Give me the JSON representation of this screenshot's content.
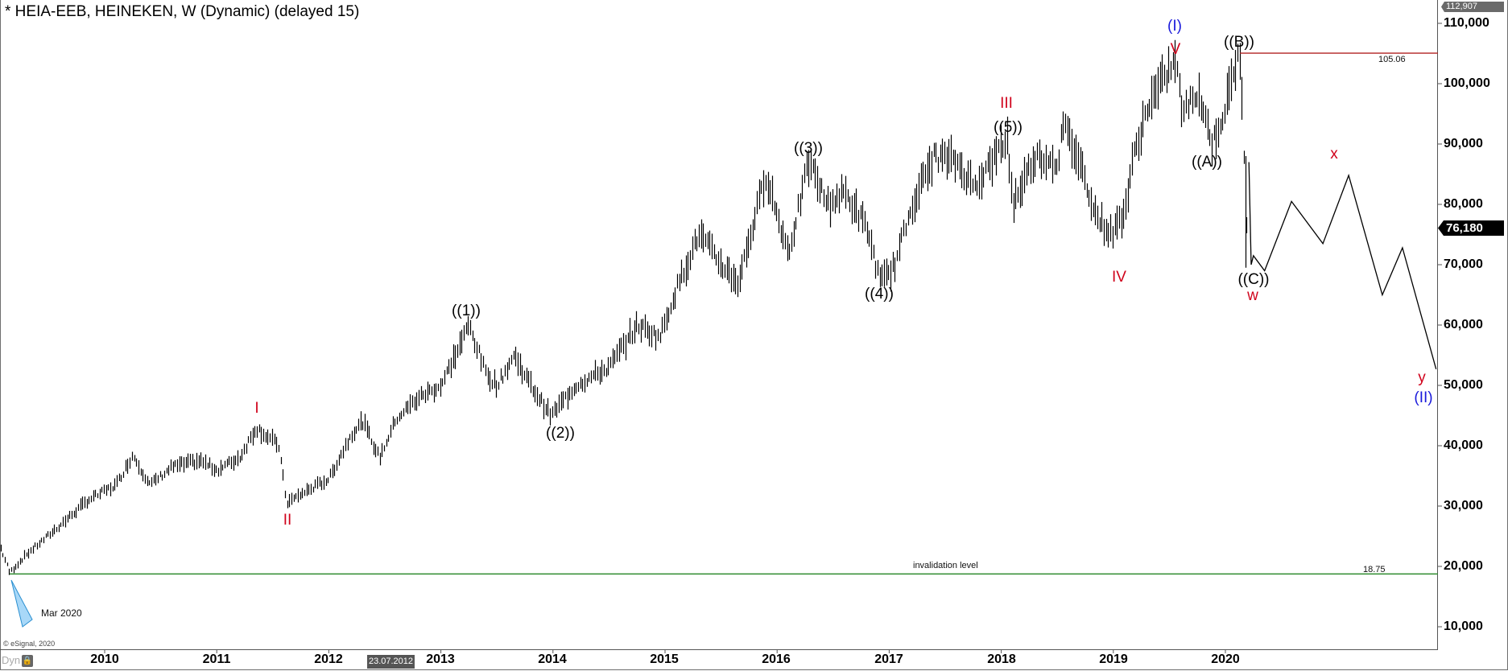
{
  "chart_data": {
    "type": "bar",
    "subtype": "ohlc-weekly-with-elliott-wave-annotations",
    "title": "* HEIA-EEB, HEINEKEN, W (Dynamic) (delayed 15)",
    "xlabel": "",
    "ylabel": "",
    "ylim": [
      6000,
      113500
    ],
    "xlim_years": [
      2009.07,
      2021.83
    ],
    "grid": false,
    "y_ticks": [
      10000,
      20000,
      30000,
      40000,
      50000,
      60000,
      70000,
      80000,
      90000,
      100000,
      110000
    ],
    "y_tick_labels": [
      "10,000",
      "20,000",
      "30,000",
      "40,000",
      "50,000",
      "60,000",
      "70,000",
      "80,000",
      "90,000",
      "100,000",
      "110,000"
    ],
    "x_ticks": [
      2010,
      2011,
      2012,
      2013,
      2014,
      2015,
      2016,
      2017,
      2018,
      2019,
      2020
    ],
    "x_tick_labels": [
      "2010",
      "2011",
      "2012",
      "2013",
      "2014",
      "2015",
      "2016",
      "2017",
      "2018",
      "2019",
      "2020"
    ],
    "price_path": {
      "description": "Approximate weekly price trajectory (year, price) read off the chart",
      "points": [
        [
          2009.07,
          23000
        ],
        [
          2009.15,
          19000
        ],
        [
          2009.3,
          22000
        ],
        [
          2009.55,
          26000
        ],
        [
          2009.85,
          31000
        ],
        [
          2010.1,
          33500
        ],
        [
          2010.25,
          38500
        ],
        [
          2010.4,
          33500
        ],
        [
          2010.6,
          36500
        ],
        [
          2010.85,
          37500
        ],
        [
          2011.0,
          36000
        ],
        [
          2011.2,
          38000
        ],
        [
          2011.35,
          43000
        ],
        [
          2011.55,
          40000
        ],
        [
          2011.62,
          30500
        ],
        [
          2011.8,
          32500
        ],
        [
          2012.0,
          34500
        ],
        [
          2012.2,
          42000
        ],
        [
          2012.3,
          44000
        ],
        [
          2012.45,
          38000
        ],
        [
          2012.6,
          44500
        ],
        [
          2012.8,
          48000
        ],
        [
          2013.0,
          50000
        ],
        [
          2013.25,
          60000
        ],
        [
          2013.4,
          52000
        ],
        [
          2013.5,
          50000
        ],
        [
          2013.65,
          55000
        ],
        [
          2013.8,
          50000
        ],
        [
          2013.98,
          45000
        ],
        [
          2014.2,
          50000
        ],
        [
          2014.5,
          53000
        ],
        [
          2014.75,
          60000
        ],
        [
          2014.95,
          58000
        ],
        [
          2015.1,
          66000
        ],
        [
          2015.3,
          75000
        ],
        [
          2015.5,
          70000
        ],
        [
          2015.65,
          67000
        ],
        [
          2015.9,
          85000
        ],
        [
          2016.0,
          78000
        ],
        [
          2016.1,
          72000
        ],
        [
          2016.28,
          87000
        ],
        [
          2016.45,
          80000
        ],
        [
          2016.6,
          82000
        ],
        [
          2016.8,
          76000
        ],
        [
          2016.92,
          67000
        ],
        [
          2017.05,
          70000
        ],
        [
          2017.2,
          80000
        ],
        [
          2017.4,
          88000
        ],
        [
          2017.6,
          87000
        ],
        [
          2017.75,
          83000
        ],
        [
          2017.95,
          88000
        ],
        [
          2018.05,
          91000
        ],
        [
          2018.1,
          80000
        ],
        [
          2018.3,
          88000
        ],
        [
          2018.5,
          87000
        ],
        [
          2018.55,
          93000
        ],
        [
          2018.7,
          87000
        ],
        [
          2018.85,
          78000
        ],
        [
          2018.98,
          75000
        ],
        [
          2019.1,
          79000
        ],
        [
          2019.18,
          88000
        ],
        [
          2019.3,
          96000
        ],
        [
          2019.55,
          104000
        ],
        [
          2019.62,
          95000
        ],
        [
          2019.75,
          99000
        ],
        [
          2019.88,
          90000
        ],
        [
          2020.0,
          96000
        ],
        [
          2020.1,
          104000
        ],
        [
          2020.13,
          105000
        ],
        [
          2020.16,
          90000
        ],
        [
          2020.2,
          70000
        ]
      ]
    },
    "last_price": 76180,
    "visible_high": 112907,
    "horizontal_lines": [
      {
        "name": "resistance",
        "value": 105.06,
        "price_level": 105060,
        "color": "#b22222",
        "label": "105.06",
        "from_year": 2020.13
      },
      {
        "name": "invalidation",
        "value": 18.75,
        "price_level": 18750,
        "color": "#2e8b2e",
        "label": "18.75",
        "text": "invalidation level"
      }
    ],
    "projection_path": {
      "color": "#000000",
      "points": [
        [
          2020.21,
          87000
        ],
        [
          2020.23,
          70000
        ],
        [
          2020.25,
          71500
        ],
        [
          2020.35,
          69000
        ],
        [
          2020.59,
          80500
        ],
        [
          2020.87,
          73500
        ],
        [
          2021.1,
          84800
        ],
        [
          2021.4,
          65000
        ],
        [
          2021.58,
          72800
        ],
        [
          2021.88,
          52700
        ]
      ]
    },
    "annotations": [
      {
        "text": "I",
        "year": 2011.35,
        "price": 47500,
        "color": "#d0021b"
      },
      {
        "text": "II",
        "year": 2011.62,
        "price": 27000,
        "color": "#d0021b"
      },
      {
        "text": "((1))",
        "year": 2013.24,
        "price": 63000,
        "color": "#000000"
      },
      {
        "text": "((2))",
        "year": 2014.06,
        "price": 41500,
        "color": "#000000"
      },
      {
        "text": "((3))",
        "year": 2016.28,
        "price": 90500,
        "color": "#000000"
      },
      {
        "text": "((4))",
        "year": 2016.92,
        "price": 63500,
        "color": "#000000"
      },
      {
        "text": "III",
        "year": 2018.04,
        "price": 98500,
        "color": "#d0021b"
      },
      {
        "text": "((5))",
        "year": 2018.04,
        "price": 94500,
        "color": "#000000"
      },
      {
        "text": "IV",
        "year": 2019.03,
        "price": 71000,
        "color": "#d0021b"
      },
      {
        "text": "(I)",
        "year": 2019.55,
        "price": 111500,
        "color": "#1a1adb"
      },
      {
        "text": "V",
        "year": 2019.55,
        "price": 107000,
        "color": "#d0021b"
      },
      {
        "text": "((B))",
        "year": 2020.13,
        "price": 108000,
        "color": "#000000"
      },
      {
        "text": "((A))",
        "year": 2019.86,
        "price": 87000,
        "color": "#000000"
      },
      {
        "text": "((C))",
        "year": 2020.24,
        "price": 67000,
        "color": "#000000"
      },
      {
        "text": "w",
        "year": 2020.24,
        "price": 63500,
        "color": "#d0021b"
      },
      {
        "text": "x",
        "year": 2021.1,
        "price": 89500,
        "color": "#d0021b"
      },
      {
        "text": "y",
        "year": 2021.87,
        "price": 49500,
        "color": "#d0021b"
      },
      {
        "text": "(II)",
        "year": 2021.87,
        "price": 46000,
        "color": "#1a1adb"
      }
    ]
  },
  "header": {
    "title": "* HEIA-EEB, HEINEKEN, W (Dynamic) (delayed 15)"
  },
  "axis": {
    "high_tag": "112,907",
    "last_price_tag": "76,180",
    "cursor_date_tag": "23.07.2012",
    "y_labels": [
      "110,000",
      "100,000",
      "90,000",
      "80,000",
      "70,000",
      "60,000",
      "50,000",
      "40,000",
      "30,000",
      "20,000",
      "10,000"
    ],
    "x_labels": [
      "2010",
      "2011",
      "2012",
      "2013",
      "2014",
      "2015",
      "2016",
      "2017",
      "2018",
      "2019",
      "2020"
    ]
  },
  "lines": {
    "resistance_label": "105.06",
    "invalidation_text": "invalidation level",
    "invalidation_value": "18.75"
  },
  "labels": {
    "I": "I",
    "II": "II",
    "w1": "((1))",
    "w2": "((2))",
    "w3": "((3))",
    "w4": "((4))",
    "III": "III",
    "w5": "((5))",
    "IV": "IV",
    "pI": "(I)",
    "V": "V",
    "wB": "((B))",
    "wA": "((A))",
    "wC": "((C))",
    "w": "w",
    "x": "x",
    "y": "y",
    "pII": "(II)"
  },
  "footer": {
    "marker_text": "Mar 2020",
    "copyright": "© eSignal, 2020",
    "dyn_label": "Dyn",
    "lock_icon": "lock-icon"
  },
  "colors": {
    "bars": "#000000",
    "resistance": "#b22222",
    "invalidation": "#2e8b2e",
    "wave_red": "#d0021b",
    "wave_blue": "#1a1adb",
    "marker_fill": "#a8d8f8",
    "marker_stroke": "#2a8fd0"
  }
}
